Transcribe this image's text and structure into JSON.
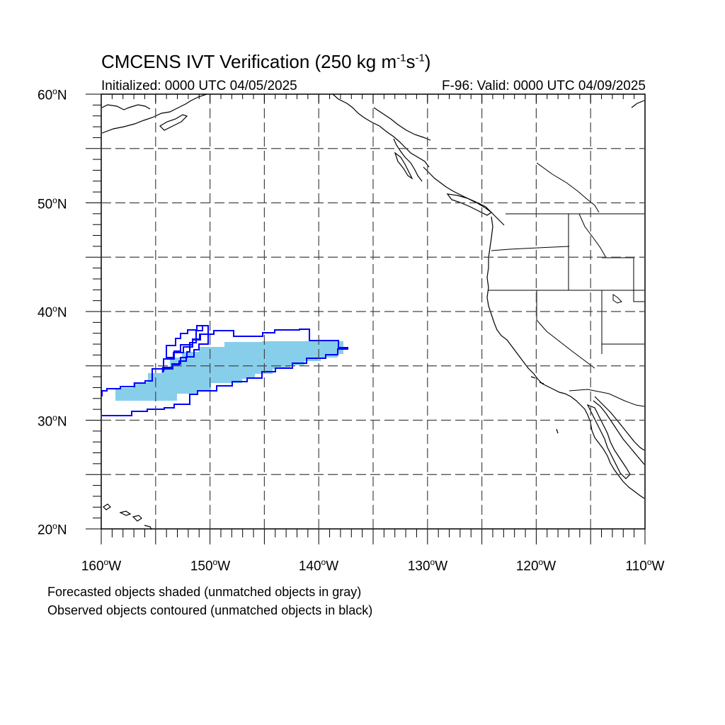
{
  "title": {
    "main": "CMCENS IVT Verification (250 kg m",
    "exp1": "-1",
    "mid": "s",
    "exp2": "-1",
    "close": ")"
  },
  "initialized": "Initialized: 0000 UTC 04/05/2025",
  "valid": "F-96: Valid: 0000 UTC 04/09/2025",
  "lat_labels": [
    "60",
    "50",
    "40",
    "30",
    "20"
  ],
  "lat_suffix": "N",
  "lon_labels": [
    "160",
    "150",
    "140",
    "130",
    "120",
    "110"
  ],
  "lon_suffix": "W",
  "notes": {
    "forecast": "Forecasted objects shaded (unmatched objects in gray)",
    "observed": "Observed objects contoured (unmatched objects in black)"
  },
  "colors": {
    "forecast_fill": "#87ceeb",
    "observed_contour": "#0000ff",
    "grid": "#444444",
    "coast": "#000000"
  },
  "map": {
    "lat_range": [
      20,
      60
    ],
    "lon_range": [
      -160,
      -110
    ],
    "grid_spacing_deg": 5
  }
}
